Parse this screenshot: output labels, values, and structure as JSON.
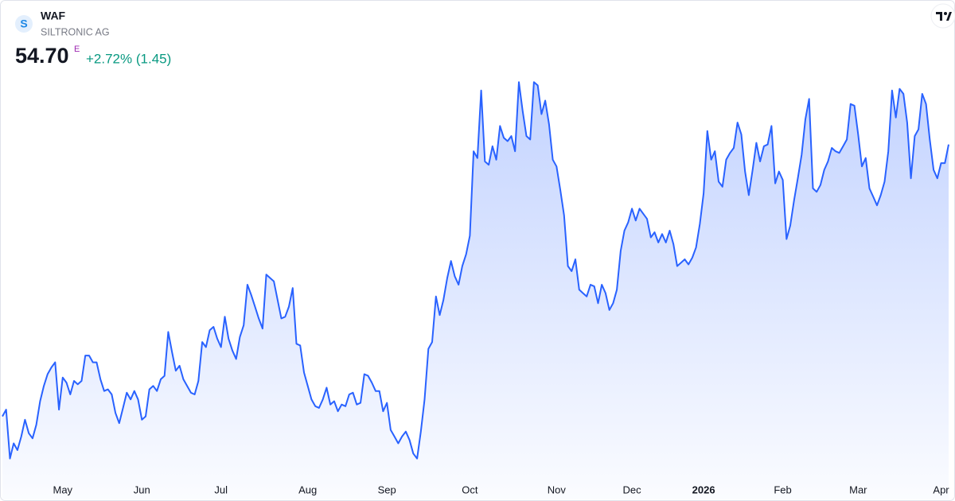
{
  "header": {
    "logo_letter": "S",
    "symbol": "WAF",
    "name": "SILTRONIC AG",
    "price": "54.70",
    "price_flag": "E",
    "change": "+2.72% (1.45)"
  },
  "chart_data": {
    "type": "line",
    "color": "#2962ff",
    "values": [
      38.6,
      39.0,
      36.1,
      37.0,
      36.6,
      37.4,
      38.4,
      37.6,
      37.3,
      38.1,
      39.5,
      40.4,
      41.1,
      41.5,
      41.8,
      39.0,
      40.9,
      40.6,
      39.9,
      40.7,
      40.5,
      40.7,
      42.2,
      42.2,
      41.8,
      41.8,
      40.8,
      40.1,
      40.2,
      39.9,
      38.8,
      38.2,
      39.1,
      40.0,
      39.6,
      40.1,
      39.6,
      38.4,
      38.6,
      40.2,
      40.4,
      40.1,
      40.8,
      41.0,
      43.6,
      42.4,
      41.3,
      41.6,
      40.8,
      40.4,
      40.0,
      39.9,
      40.7,
      43.0,
      42.7,
      43.7,
      43.9,
      43.2,
      42.7,
      44.5,
      43.2,
      42.5,
      42.0,
      43.3,
      44.0,
      46.4,
      45.8,
      45.1,
      44.4,
      43.8,
      47.0,
      46.8,
      46.6,
      45.5,
      44.4,
      44.5,
      45.1,
      46.2,
      42.9,
      42.8,
      41.2,
      40.4,
      39.6,
      39.2,
      39.1,
      39.6,
      40.3,
      39.3,
      39.5,
      38.9,
      39.3,
      39.2,
      39.9,
      40.0,
      39.3,
      39.4,
      41.1,
      41.0,
      40.6,
      40.1,
      40.1,
      38.9,
      39.4,
      37.8,
      37.4,
      37.0,
      37.4,
      37.7,
      37.2,
      36.4,
      36.1,
      37.7,
      39.6,
      42.6,
      43.0,
      45.7,
      44.6,
      45.5,
      46.8,
      47.8,
      46.9,
      46.4,
      47.5,
      48.2,
      49.3,
      54.3,
      53.9,
      57.9,
      53.7,
      53.5,
      54.6,
      53.8,
      55.8,
      55.1,
      54.9,
      55.2,
      54.3,
      58.4,
      56.7,
      55.2,
      55.0,
      58.4,
      58.2,
      56.5,
      57.3,
      55.9,
      53.8,
      53.4,
      52.0,
      50.5,
      47.5,
      47.2,
      47.9,
      46.1,
      45.9,
      45.7,
      46.4,
      46.3,
      45.3,
      46.4,
      45.9,
      44.9,
      45.3,
      46.1,
      48.4,
      49.6,
      50.1,
      50.9,
      50.2,
      50.9,
      50.6,
      50.3,
      49.2,
      49.5,
      48.9,
      49.4,
      48.9,
      49.6,
      48.8,
      47.5,
      47.7,
      47.9,
      47.6,
      48.0,
      48.6,
      50.0,
      51.8,
      55.5,
      53.8,
      54.3,
      52.5,
      52.2,
      53.8,
      54.2,
      54.5,
      56.0,
      55.3,
      53.1,
      51.7,
      53.2,
      54.8,
      53.7,
      54.6,
      54.7,
      55.8,
      52.4,
      53.1,
      52.6,
      49.1,
      49.9,
      51.4,
      52.7,
      54.1,
      56.2,
      57.4,
      52.1,
      51.9,
      52.3,
      53.2,
      53.7,
      54.5,
      54.3,
      54.2,
      54.6,
      55.0,
      57.1,
      57.0,
      55.3,
      53.4,
      53.9,
      52.1,
      51.6,
      51.1,
      51.7,
      52.5,
      54.3,
      57.9,
      56.3,
      58.0,
      57.7,
      56.0,
      52.7,
      55.2,
      55.6,
      57.7,
      57.1,
      55.0,
      53.2,
      52.7,
      53.6,
      53.6,
      54.7
    ],
    "ylim": [
      35,
      60
    ],
    "xticks": [
      {
        "value": 16,
        "label": "May"
      },
      {
        "value": 37,
        "label": "Jun"
      },
      {
        "value": 58,
        "label": "Jul"
      },
      {
        "value": 81,
        "label": "Aug"
      },
      {
        "value": 102,
        "label": "Sep"
      },
      {
        "value": 124,
        "label": "Oct"
      },
      {
        "value": 147,
        "label": "Nov"
      },
      {
        "value": 167,
        "label": "Dec"
      },
      {
        "value": 186,
        "label": "2026"
      },
      {
        "value": 207,
        "label": "Feb"
      },
      {
        "value": 227,
        "label": "Mar"
      },
      {
        "value": 249,
        "label": "Apr"
      }
    ]
  }
}
